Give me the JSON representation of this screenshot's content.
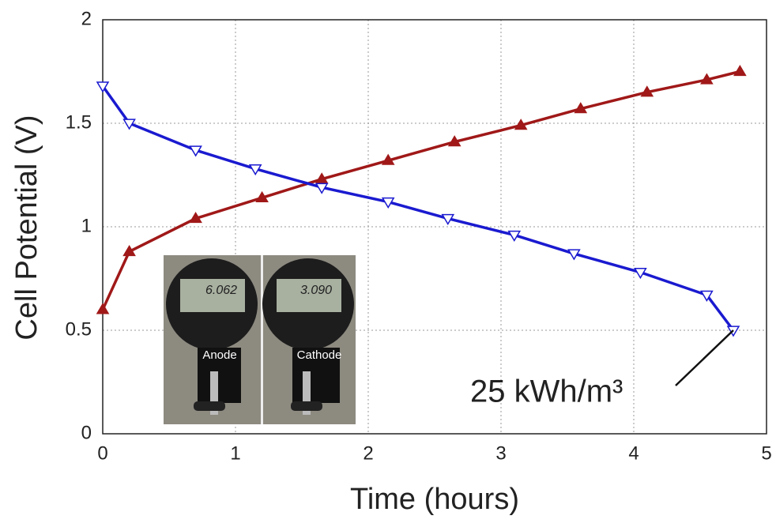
{
  "chart_data": {
    "type": "line",
    "xlabel": "Time (hours)",
    "ylabel": "Cell Potential (V)",
    "xlim": [
      0,
      5
    ],
    "ylim": [
      0,
      2
    ],
    "xticks": [
      0,
      1,
      2,
      3,
      4,
      5
    ],
    "yticks": [
      0,
      0.5,
      1,
      1.5,
      2
    ],
    "grid": true,
    "series": [
      {
        "color": "#a01818",
        "marker": "triangle-up",
        "x": [
          0,
          0.2,
          0.7,
          1.2,
          1.65,
          2.15,
          2.65,
          3.15,
          3.6,
          4.1,
          4.55,
          4.8
        ],
        "values": [
          0.6,
          0.88,
          1.04,
          1.14,
          1.23,
          1.32,
          1.41,
          1.49,
          1.57,
          1.65,
          1.71,
          1.75
        ]
      },
      {
        "color": "#1a1ad0",
        "marker": "triangle-down",
        "x": [
          0,
          0.2,
          0.7,
          1.15,
          1.65,
          2.15,
          2.6,
          3.1,
          3.55,
          4.05,
          4.55,
          4.75
        ],
        "values": [
          1.68,
          1.5,
          1.37,
          1.28,
          1.19,
          1.12,
          1.04,
          0.96,
          0.87,
          0.78,
          0.67,
          0.5
        ]
      }
    ],
    "annotation": {
      "text": "25 kWh/m³",
      "x": 4.75,
      "y": 0.5
    },
    "inset": {
      "readings": [
        "6.062",
        "3.090"
      ],
      "labels": [
        "Anode",
        "Cathode"
      ]
    }
  }
}
